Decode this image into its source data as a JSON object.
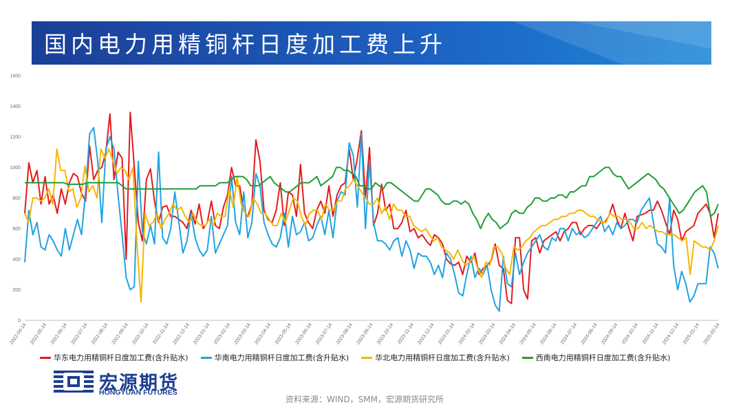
{
  "header": {
    "title": "国内电力用精铜杆日度加工费上升"
  },
  "chart_data": {
    "type": "line",
    "title": "",
    "xlabel": "",
    "ylabel": "",
    "ylim": [
      0,
      1600
    ],
    "yticks": [
      "0",
      "200",
      "400",
      "600",
      "800",
      "1000",
      "1200",
      "1400",
      "1600"
    ],
    "xticks": [
      "2022-04-14",
      "2022-05-14",
      "2022-06-14",
      "2022-07-14",
      "2022-08-14",
      "2022-09-14",
      "2022-10-14",
      "2022-11-14",
      "2022-12-14",
      "2023-01-14",
      "2023-02-14",
      "2023-03-14",
      "2023-04-14",
      "2023-05-14",
      "2023-06-14",
      "2023-07-14",
      "2023-08-14",
      "2023-09-14",
      "2023-10-14",
      "2023-11-14",
      "2023-12-14",
      "2024-01-14",
      "2024-02-14",
      "2024-03-14",
      "2024-04-14",
      "2024-05-14",
      "2024-06-14",
      "2024-07-14",
      "2024-08-14",
      "2024-09-14",
      "2024-10-14",
      "2024-11-14",
      "2024-12-14",
      "2025-01-14",
      "2025-02-14"
    ],
    "grid": false,
    "legend_position": "bottom",
    "series": [
      {
        "name": "华东电力用精铜杆日度加工费(含升贴水)",
        "color": "#e41a1c",
        "values": [
          700,
          1030,
          900,
          980,
          760,
          940,
          760,
          820,
          700,
          860,
          760,
          900,
          960,
          940,
          830,
          780,
          1140,
          920,
          980,
          1000,
          1100,
          1350,
          920,
          1100,
          1060,
          400,
          1360,
          1000,
          640,
          520,
          920,
          990,
          780,
          640,
          740,
          750,
          680,
          680,
          660,
          640,
          600,
          720,
          630,
          760,
          600,
          640,
          780,
          620,
          600,
          740,
          820,
          1000,
          880,
          880,
          720,
          680,
          760,
          1180,
          1040,
          720,
          660,
          640,
          720,
          900,
          620,
          840,
          820,
          680,
          1020,
          700,
          640,
          600,
          720,
          780,
          700,
          880,
          680,
          820,
          880,
          900,
          1120,
          920,
          1060,
          1240,
          800,
          1130,
          620,
          700,
          890,
          720,
          760,
          600,
          600,
          640,
          720,
          580,
          600,
          540,
          560,
          520,
          490,
          560,
          540,
          500,
          400,
          370,
          360,
          380,
          300,
          420,
          380,
          440,
          300,
          340,
          360,
          390,
          500,
          360,
          340,
          130,
          110,
          540,
          540,
          200,
          140,
          520,
          540,
          440,
          520,
          540,
          560,
          580,
          520,
          580,
          600,
          640,
          640,
          560,
          600,
          620,
          620,
          600,
          640,
          640,
          680,
          760,
          660,
          600,
          700,
          600,
          520,
          680,
          690,
          700,
          720,
          720,
          780,
          720,
          640,
          560,
          720,
          660,
          520,
          580,
          600,
          620,
          700,
          730,
          760,
          700,
          540,
          700
        ]
      },
      {
        "name": "华南电力用精铜杆日度加工费(含升贴水)",
        "color": "#1fa3e0",
        "values": [
          380,
          720,
          560,
          640,
          480,
          460,
          560,
          520,
          460,
          420,
          600,
          460,
          560,
          660,
          560,
          840,
          1220,
          1260,
          1040,
          640,
          1120,
          1200,
          1120,
          820,
          560,
          280,
          200,
          220,
          1040,
          580,
          500,
          620,
          500,
          1100,
          540,
          500,
          600,
          840,
          640,
          440,
          520,
          700,
          540,
          460,
          420,
          460,
          680,
          440,
          500,
          560,
          620,
          940,
          640,
          560,
          840,
          540,
          640,
          960,
          880,
          640,
          560,
          500,
          480,
          540,
          700,
          480,
          680,
          560,
          580,
          640,
          520,
          540,
          620,
          680,
          560,
          720,
          540,
          780,
          840,
          820,
          1160,
          1080,
          740,
          1220,
          600,
          1040,
          640,
          520,
          520,
          500,
          460,
          520,
          540,
          420,
          520,
          460,
          340,
          440,
          420,
          420,
          380,
          300,
          360,
          280,
          440,
          400,
          300,
          180,
          160,
          300,
          420,
          280,
          340,
          300,
          360,
          200,
          100,
          60,
          420,
          240,
          220,
          440,
          300,
          380,
          440,
          480,
          520,
          560,
          480,
          460,
          540,
          520,
          600,
          600,
          520,
          600,
          560,
          580,
          540,
          560,
          600,
          640,
          680,
          580,
          620,
          560,
          640,
          600,
          620,
          660,
          660,
          640,
          720,
          760,
          800,
          640,
          500,
          480,
          440,
          800,
          360,
          200,
          320,
          240,
          120,
          160,
          240,
          240,
          240,
          480,
          440,
          340
        ]
      },
      {
        "name": "华北电力用精铜杆日度加工费(含升贴水)",
        "color": "#f7b500",
        "values": [
          700,
          640,
          800,
          800,
          780,
          800,
          860,
          760,
          1120,
          980,
          980,
          840,
          860,
          740,
          800,
          1010,
          840,
          880,
          800,
          1120,
          1060,
          1120,
          1040,
          960,
          1000,
          980,
          920,
          1000,
          500,
          120,
          700,
          620,
          640,
          700,
          600,
          660,
          700,
          760,
          720,
          740,
          680,
          640,
          700,
          640,
          620,
          620,
          660,
          620,
          700,
          680,
          680,
          860,
          740,
          940,
          760,
          700,
          680,
          800,
          760,
          700,
          700,
          660,
          620,
          620,
          700,
          640,
          720,
          800,
          780,
          680,
          620,
          700,
          720,
          720,
          660,
          760,
          720,
          720,
          780,
          780,
          860,
          880,
          920,
          880,
          840,
          800,
          760,
          760,
          800,
          700,
          740,
          660,
          760,
          720,
          720,
          680,
          680,
          620,
          600,
          580,
          600,
          560,
          520,
          540,
          480,
          460,
          440,
          400,
          460,
          400,
          360,
          380,
          420,
          340,
          280,
          380,
          360,
          480,
          480,
          440,
          340,
          300,
          480,
          460,
          480,
          520,
          540,
          580,
          600,
          620,
          620,
          640,
          660,
          660,
          680,
          680,
          700,
          700,
          720,
          720,
          700,
          680,
          680,
          660,
          640,
          640,
          700,
          680,
          680,
          660,
          660,
          640,
          600,
          600,
          640,
          600,
          620,
          600,
          580,
          580,
          560,
          560,
          560,
          540,
          520,
          540,
          300,
          520,
          500,
          480,
          480,
          460,
          520,
          620
        ]
      },
      {
        "name": "西南电力用精铜杆日度加工费(含升贴水)",
        "color": "#1e9e34",
        "values": [
          900,
          900,
          900,
          900,
          900,
          900,
          900,
          900,
          900,
          900,
          900,
          890,
          890,
          890,
          890,
          890,
          900,
          900,
          900,
          900,
          900,
          900,
          900,
          900,
          900,
          880,
          860,
          860,
          860,
          860,
          860,
          860,
          860,
          860,
          860,
          860,
          860,
          860,
          860,
          860,
          860,
          860,
          860,
          860,
          860,
          880,
          880,
          880,
          880,
          880,
          900,
          900,
          900,
          920,
          940,
          940,
          940,
          920,
          880,
          880,
          880,
          900,
          920,
          940,
          900,
          880,
          860,
          840,
          840,
          860,
          880,
          900,
          900,
          900,
          920,
          940,
          880,
          900,
          920,
          940,
          1000,
          1000,
          980,
          980,
          960,
          940,
          880,
          880,
          860,
          860,
          900,
          880,
          860,
          900,
          900,
          880,
          860,
          840,
          820,
          800,
          780,
          780,
          820,
          860,
          860,
          840,
          820,
          780,
          760,
          760,
          780,
          780,
          760,
          780,
          760,
          700,
          660,
          600,
          660,
          700,
          660,
          640,
          600,
          620,
          640,
          700,
          720,
          700,
          700,
          740,
          760,
          800,
          800,
          780,
          780,
          800,
          800,
          820,
          820,
          800,
          840,
          840,
          860,
          880,
          880,
          940,
          940,
          960,
          980,
          1000,
          1000,
          960,
          940,
          940,
          900,
          860,
          880,
          900,
          920,
          940,
          960,
          940,
          920,
          880,
          860,
          820,
          780,
          740,
          700,
          720,
          760,
          800,
          840,
          860,
          880,
          840,
          680,
          700,
          760
        ]
      }
    ]
  },
  "legend": {
    "items": [
      "华东电力用精铜杆日度加工费(含升贴水)",
      "华南电力用精铜杆日度加工费(含升贴水)",
      "华北电力用精铜杆日度加工费(含升贴水)",
      "西南电力用精铜杆日度加工费(含升贴水)"
    ]
  },
  "logo": {
    "cn": "宏源期货",
    "en": "HONGYUAN FUTURES",
    "icon": "hongyuan-logo-icon"
  },
  "footer": {
    "source": "资料来源：WIND，SMM，宏源期货研究所"
  },
  "colors": {
    "banner_dark": "#1b3f96",
    "banner_light": "#1e88d9",
    "brand": "#1d3f8f"
  }
}
